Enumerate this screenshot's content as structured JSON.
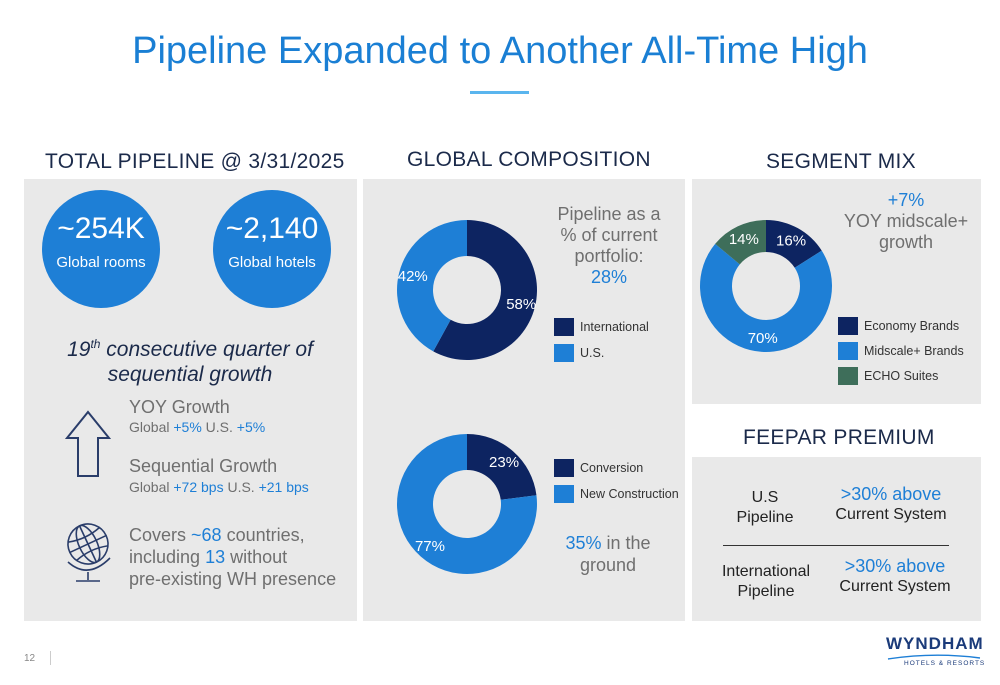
{
  "title": "Pipeline Expanded to Another All-Time High",
  "total_pipeline": {
    "heading": "TOTAL PIPELINE @ 3/31/2025",
    "rooms": {
      "value": "~254K",
      "label": "Global rooms"
    },
    "hotels": {
      "value": "~2,140",
      "label": "Global hotels"
    },
    "quarter_num": "19",
    "quarter_sup": "th",
    "quarter_text": " consecutive quarter of",
    "quarter_text2": "sequential growth",
    "yoy": {
      "label": "YOY Growth",
      "g_label": "Global ",
      "g_val": "+5%",
      "u_label": " U.S. ",
      "u_val": "+5%"
    },
    "seq": {
      "label": "Sequential Growth",
      "g_label": "Global ",
      "g_val": "+72 bps",
      "u_label": " U.S. ",
      "u_val": "+21 bps"
    },
    "covers": {
      "l1a": "Covers ",
      "l1b": "~68",
      "l1c": " countries,",
      "l2a": "including ",
      "l2b": "13",
      "l2c": " without",
      "l3": "pre-existing WH presence"
    }
  },
  "global_composition": {
    "heading": "GLOBAL COMPOSITION",
    "portfolio_text": {
      "l1": "Pipeline as a",
      "l2": "% of current",
      "l3": "portfolio:",
      "l4": "28%"
    },
    "donut1": {
      "segments": [
        {
          "name": "International",
          "value": 58,
          "label": "58%",
          "color": "#0d2461"
        },
        {
          "name": "U.S.",
          "value": 42,
          "label": "42%",
          "color": "#1e7fd6"
        }
      ]
    },
    "donut2": {
      "segments": [
        {
          "name": "Conversion",
          "value": 23,
          "label": "23%",
          "color": "#0d2461"
        },
        {
          "name": "New Construction",
          "value": 77,
          "label": "77%",
          "color": "#1e7fd6"
        }
      ]
    },
    "ground": {
      "value": "35%",
      "l1": " in the",
      "l2": "ground"
    }
  },
  "segment_mix": {
    "heading": "SEGMENT MIX",
    "growth": {
      "l1": "+7%",
      "l2": "YOY midscale+",
      "l3": "growth"
    },
    "donut": {
      "segments": [
        {
          "name": "Economy Brands",
          "value": 16,
          "label": "16%",
          "color": "#0d2461"
        },
        {
          "name": "Midscale+ Brands",
          "value": 70,
          "label": "70%",
          "color": "#1e7fd6"
        },
        {
          "name": "ECHO Suites",
          "value": 14,
          "label": "14%",
          "color": "#3e6e5a"
        }
      ]
    }
  },
  "feepar": {
    "heading": "FEEPAR PREMIUM",
    "rows": [
      {
        "l1": "U.S",
        "l2": "Pipeline",
        "b1": ">30% above",
        "b2": "Current System"
      },
      {
        "l1": "International",
        "l2": "Pipeline",
        "b1": ">30% above",
        "b2": "Current System"
      }
    ]
  },
  "footer": {
    "page": "12",
    "logo": "WYNDHAM",
    "logo_sub": "HOTELS & RESORTS"
  }
}
